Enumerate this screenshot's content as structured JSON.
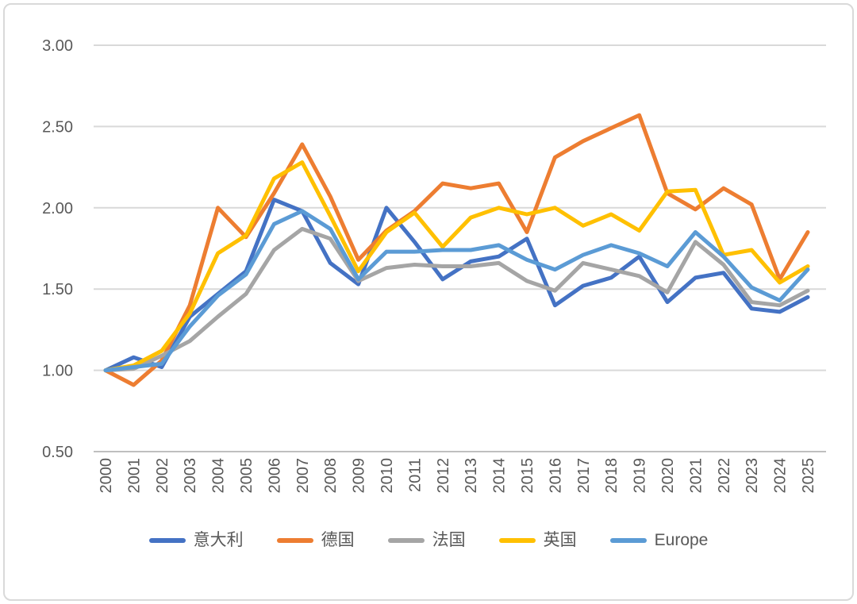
{
  "chart_data": {
    "type": "line",
    "title": "",
    "xlabel": "",
    "ylabel": "",
    "x": [
      "2000",
      "2001",
      "2002",
      "2003",
      "2004",
      "2005",
      "2006",
      "2007",
      "2008",
      "2009",
      "2010",
      "2011",
      "2012",
      "2013",
      "2014",
      "2015",
      "2016",
      "2017",
      "2018",
      "2019",
      "2020",
      "2021",
      "2022",
      "2023",
      "2024",
      "2025"
    ],
    "series": [
      {
        "name": "意大利",
        "color": "#4472C4",
        "values": [
          1.0,
          1.08,
          1.02,
          1.33,
          1.47,
          1.61,
          2.05,
          1.98,
          1.66,
          1.53,
          2.0,
          1.79,
          1.56,
          1.67,
          1.7,
          1.81,
          1.4,
          1.52,
          1.57,
          1.7,
          1.42,
          1.57,
          1.6,
          1.38,
          1.36,
          1.45
        ]
      },
      {
        "name": "德国",
        "color": "#ED7D31",
        "values": [
          1.0,
          0.91,
          1.06,
          1.4,
          2.0,
          1.82,
          2.09,
          2.39,
          2.07,
          1.68,
          1.86,
          1.98,
          2.15,
          2.12,
          2.15,
          1.85,
          2.31,
          2.41,
          2.49,
          2.57,
          2.09,
          1.99,
          2.12,
          2.02,
          1.56,
          1.85
        ]
      },
      {
        "name": "法国",
        "color": "#A5A5A5",
        "values": [
          1.0,
          1.01,
          1.09,
          1.18,
          1.33,
          1.47,
          1.74,
          1.87,
          1.81,
          1.55,
          1.63,
          1.65,
          1.64,
          1.64,
          1.66,
          1.55,
          1.49,
          1.66,
          1.62,
          1.58,
          1.48,
          1.79,
          1.65,
          1.42,
          1.4,
          1.49
        ]
      },
      {
        "name": "英国",
        "color": "#FFC000",
        "values": [
          1.0,
          1.03,
          1.12,
          1.35,
          1.72,
          1.83,
          2.18,
          2.28,
          1.95,
          1.61,
          1.85,
          1.97,
          1.76,
          1.94,
          2.0,
          1.96,
          2.0,
          1.89,
          1.96,
          1.86,
          2.1,
          2.11,
          1.71,
          1.74,
          1.54,
          1.64
        ]
      },
      {
        "name": "Europe",
        "color": "#5B9BD5",
        "values": [
          1.0,
          1.02,
          1.04,
          1.27,
          1.46,
          1.59,
          1.9,
          1.98,
          1.87,
          1.56,
          1.73,
          1.73,
          1.74,
          1.74,
          1.77,
          1.68,
          1.62,
          1.71,
          1.77,
          1.72,
          1.64,
          1.85,
          1.7,
          1.51,
          1.43,
          1.62
        ]
      }
    ],
    "ylim": [
      0.5,
      3.0
    ],
    "y_tick_step": 0.5,
    "y_tick_labels": [
      "0.50",
      "1.00",
      "1.50",
      "2.00",
      "2.50",
      "3.00"
    ],
    "grid": "horizontal",
    "legend_position": "bottom",
    "x_label_rotation": -90,
    "colors": {
      "tick_label": "#595959",
      "gridline": "#d9d9d9",
      "axis_line": "#bfbfbf",
      "background": "#ffffff",
      "card_border": "#d9d9d9"
    }
  }
}
